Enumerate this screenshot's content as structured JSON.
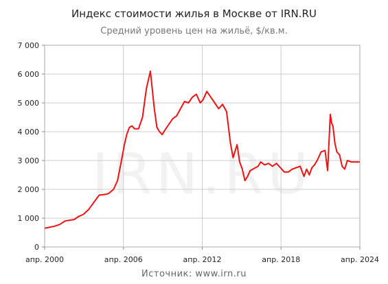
{
  "chart_data": {
    "type": "line",
    "title": "Индекс стоимости жилья в Москве от IRN.RU",
    "subtitle": "Средний уровень цен на жильё, $/кв.м.",
    "source": "Источник: www.irn.ru",
    "watermark": "IRN.RU",
    "xlabel": "",
    "ylabel": "",
    "ylim": [
      0,
      7000
    ],
    "xlim": [
      2000.25,
      2024.25
    ],
    "y_ticks": [
      0,
      1000,
      2000,
      3000,
      4000,
      5000,
      6000,
      7000
    ],
    "y_tick_labels": [
      "0",
      "1 000",
      "2 000",
      "3 000",
      "4 000",
      "5 000",
      "6 000",
      "7 000"
    ],
    "x_ticks": [
      2000.25,
      2006.25,
      2012.25,
      2018.25,
      2024.25
    ],
    "x_tick_labels": [
      "апр. 2000",
      "апр. 2006",
      "апр. 2012",
      "апр. 2018",
      "апр. 2024"
    ],
    "grid": true,
    "legend": "none",
    "line_color": "#ee1111",
    "grid_color": "#cccccc",
    "series": [
      {
        "x": [
          2000.25,
          2000.6,
          2001.0,
          2001.4,
          2001.8,
          2002.2,
          2002.5,
          2002.8,
          2003.2,
          2003.6,
          2004.0,
          2004.4,
          2004.8,
          2005.1,
          2005.5,
          2005.8,
          2006.1,
          2006.3,
          2006.5,
          2006.7,
          2006.9,
          2007.1,
          2007.4,
          2007.7,
          2008.0,
          2008.3,
          2008.6,
          2008.8,
          2009.0,
          2009.2,
          2009.4,
          2009.7,
          2010.0,
          2010.3,
          2010.6,
          2010.9,
          2011.2,
          2011.5,
          2011.8,
          2012.1,
          2012.3,
          2012.6,
          2012.9,
          2013.2,
          2013.5,
          2013.8,
          2014.1,
          2014.4,
          2014.6,
          2014.9,
          2015.1,
          2015.3,
          2015.5,
          2015.7,
          2015.9,
          2016.1,
          2016.3,
          2016.5,
          2016.7,
          2017.0,
          2017.3,
          2017.6,
          2017.9,
          2018.2,
          2018.5,
          2018.8,
          2019.1,
          2019.4,
          2019.7,
          2020.0,
          2020.2,
          2020.4,
          2020.6,
          2020.8,
          2021.0,
          2021.3,
          2021.6,
          2021.8,
          2022.0,
          2022.1,
          2022.2,
          2022.35,
          2022.5,
          2022.7,
          2022.9,
          2023.1,
          2023.3,
          2023.6,
          2023.8,
          2024.0,
          2024.25
        ],
        "values": [
          650,
          680,
          720,
          780,
          900,
          930,
          950,
          1050,
          1130,
          1300,
          1550,
          1800,
          1820,
          1850,
          2000,
          2300,
          3000,
          3500,
          3900,
          4150,
          4200,
          4100,
          4100,
          4500,
          5500,
          6100,
          4800,
          4150,
          4000,
          3900,
          4050,
          4250,
          4450,
          4550,
          4800,
          5050,
          5000,
          5200,
          5300,
          5000,
          5100,
          5400,
          5200,
          5000,
          4800,
          4950,
          4700,
          3600,
          3100,
          3550,
          2950,
          2700,
          2300,
          2450,
          2650,
          2700,
          2750,
          2800,
          2950,
          2850,
          2900,
          2800,
          2900,
          2750,
          2600,
          2600,
          2700,
          2750,
          2800,
          2450,
          2700,
          2500,
          2750,
          2850,
          3000,
          3300,
          3350,
          2650,
          4600,
          4300,
          4200,
          3600,
          3300,
          3200,
          2800,
          2700,
          3000,
          2950,
          2950,
          2950,
          2950
        ]
      }
    ]
  }
}
